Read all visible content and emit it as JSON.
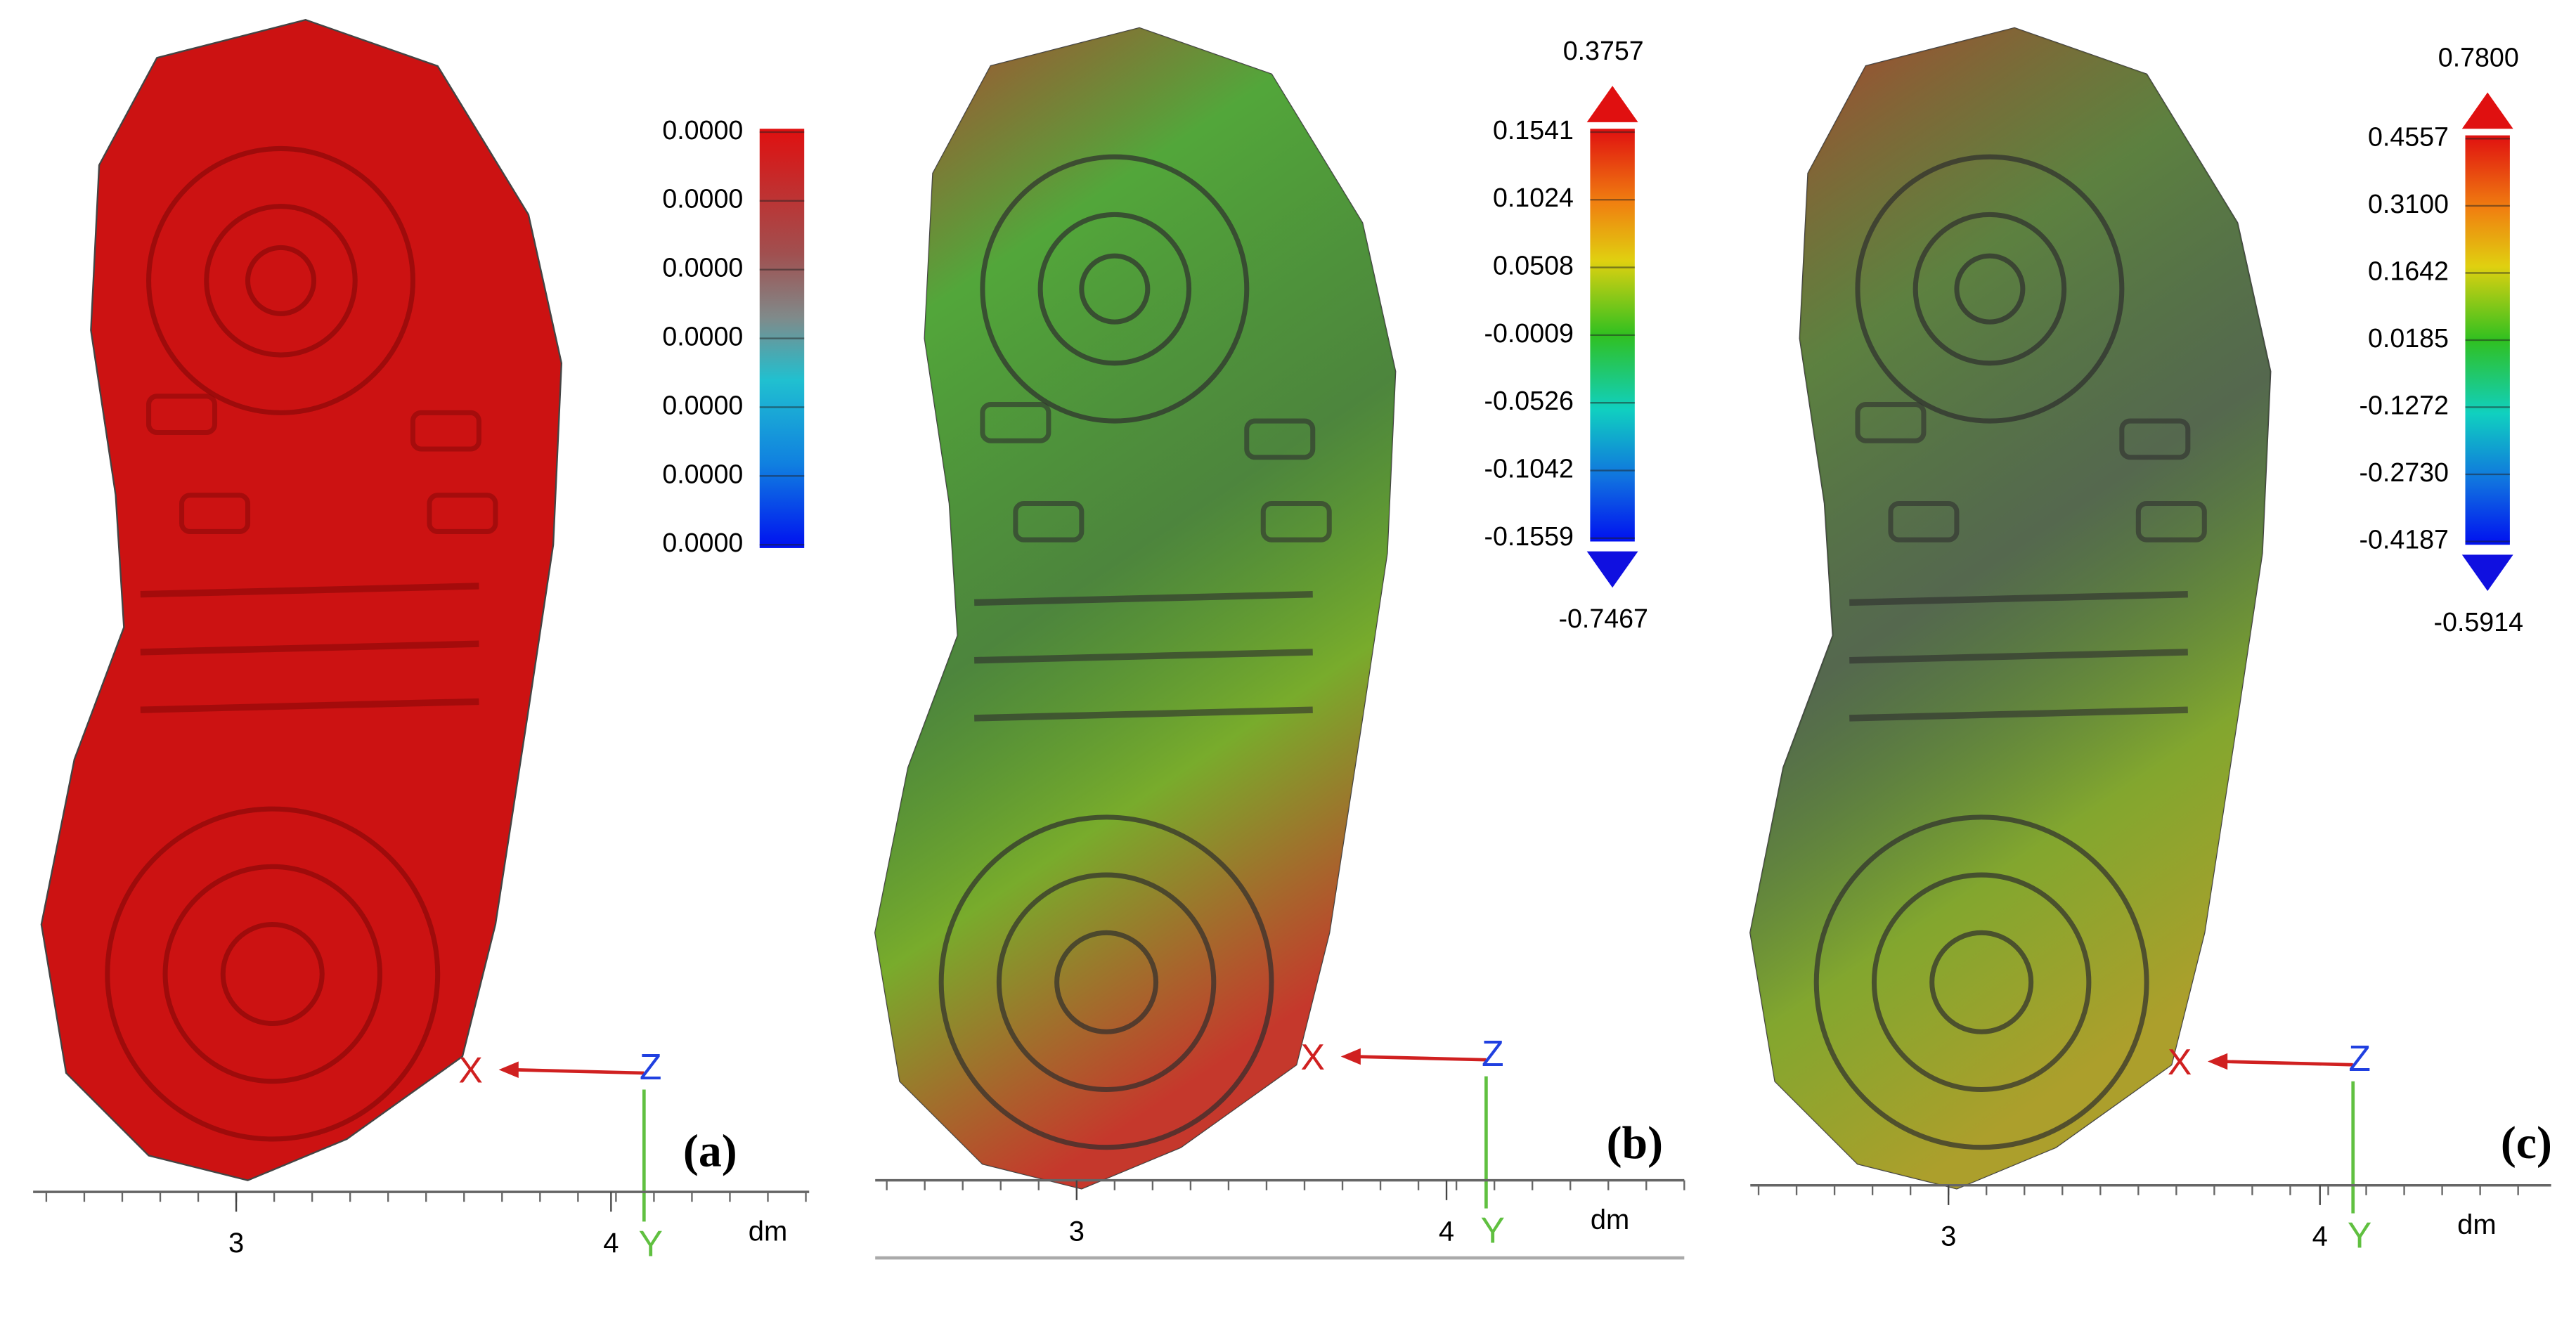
{
  "panels": [
    {
      "label": "(a)",
      "scale_labels": [
        "0.0000",
        "0.0000",
        "0.0000",
        "0.0000",
        "0.0000",
        "0.0000",
        "0.0000"
      ],
      "axes": {
        "x": "X",
        "z": "Z",
        "y": "Y"
      },
      "ruler": {
        "ticks": [
          "3",
          "4"
        ],
        "unit": "dm"
      }
    },
    {
      "label": "(b)",
      "scale_max": "0.3757",
      "scale_labels": [
        "0.1541",
        "0.1024",
        "0.0508",
        "-0.0009",
        "-0.0526",
        "-0.1042",
        "-0.1559"
      ],
      "scale_min": "-0.7467",
      "axes": {
        "x": "X",
        "z": "Z",
        "y": "Y"
      },
      "ruler": {
        "ticks": [
          "3",
          "4"
        ],
        "unit": "dm"
      }
    },
    {
      "label": "(c)",
      "scale_max": "0.7800",
      "scale_labels": [
        "0.4557",
        "0.3100",
        "0.1642",
        "0.0185",
        "-0.1272",
        "-0.2730",
        "-0.4187"
      ],
      "scale_min": "-0.5914",
      "axes": {
        "x": "X",
        "z": "Z",
        "y": "Y"
      },
      "ruler": {
        "ticks": [
          "3",
          "4"
        ],
        "unit": "dm"
      }
    }
  ]
}
